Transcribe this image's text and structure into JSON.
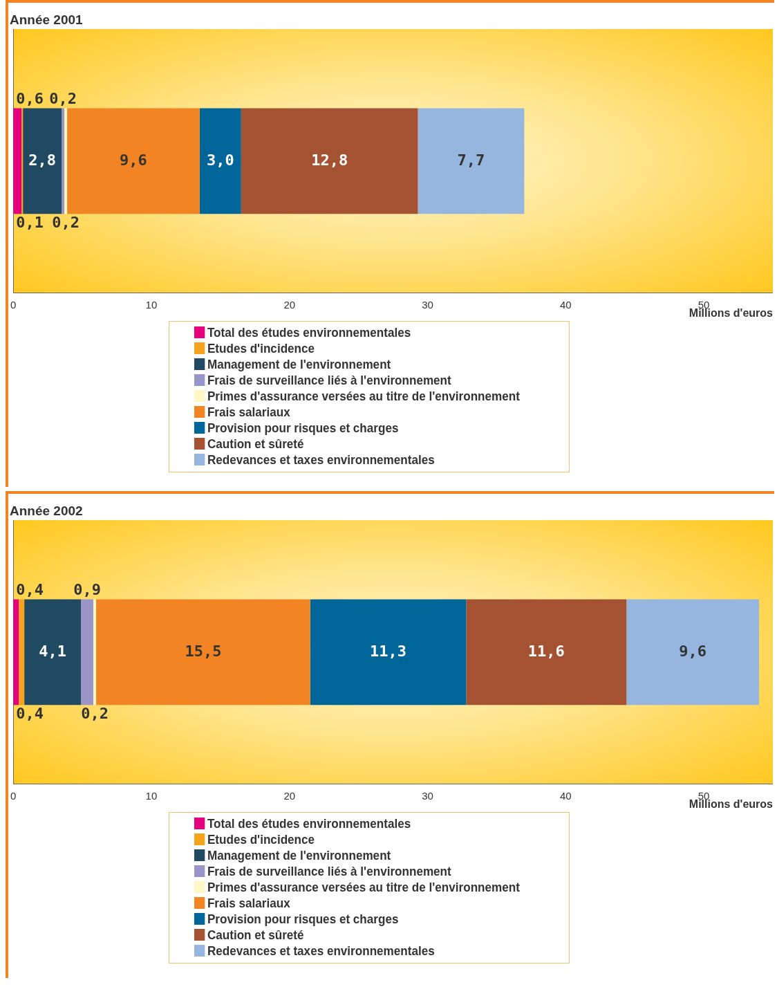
{
  "chart_data": [
    {
      "type": "bar",
      "title": "Année 2001",
      "orientation": "horizontal",
      "stacked": true,
      "categories": [
        null
      ],
      "xlabel": "Millions d'euros",
      "xlim": [
        0,
        55
      ],
      "xticks": [
        0,
        10,
        20,
        30,
        40,
        50
      ],
      "grid": false,
      "legend": "bottom",
      "series": [
        {
          "name": "Total des études environnementales",
          "color": "#e5007e",
          "values": [
            0.6
          ],
          "value_labels": [
            "0,6"
          ]
        },
        {
          "name": "Etudes d'incidence",
          "color": "#f5a21c",
          "values": [
            0.1
          ],
          "value_labels": [
            "0,1"
          ]
        },
        {
          "name": "Management de l'environnement",
          "color": "#1f4a62",
          "values": [
            2.8
          ],
          "value_labels": [
            "2,8"
          ]
        },
        {
          "name": "Frais de surveillance liés à l'environnement",
          "color": "#9b94c8",
          "values": [
            0.2
          ],
          "value_labels": [
            "0,2"
          ]
        },
        {
          "name": "Primes d'assurance versées au titre de l'environnement",
          "color": "#fff8c4",
          "values": [
            0.2
          ],
          "value_labels": [
            "0,2"
          ]
        },
        {
          "name": "Frais salariaux",
          "color": "#f28424",
          "values": [
            9.6
          ],
          "value_labels": [
            "9,6"
          ]
        },
        {
          "name": "Provision pour risques et charges",
          "color": "#00669a",
          "values": [
            3.0
          ],
          "value_labels": [
            "3,0"
          ]
        },
        {
          "name": "Caution et sûreté",
          "color": "#a55232",
          "values": [
            12.8
          ],
          "value_labels": [
            "12,8"
          ]
        },
        {
          "name": "Redevances et taxes environnementales",
          "color": "#96b6df",
          "values": [
            7.7
          ],
          "value_labels": [
            "7,7"
          ]
        }
      ]
    },
    {
      "type": "bar",
      "title": "Année 2002",
      "orientation": "horizontal",
      "stacked": true,
      "categories": [
        null
      ],
      "xlabel": "Millions d'euros",
      "xlim": [
        0,
        55
      ],
      "xticks": [
        0,
        10,
        20,
        30,
        40,
        50
      ],
      "grid": false,
      "legend": "bottom",
      "series": [
        {
          "name": "Total des études environnementales",
          "color": "#e5007e",
          "values": [
            0.4
          ],
          "value_labels": [
            "0,4"
          ]
        },
        {
          "name": "Etudes d'incidence",
          "color": "#f5a21c",
          "values": [
            0.4
          ],
          "value_labels": [
            "0,4"
          ]
        },
        {
          "name": "Management de l'environnement",
          "color": "#1f4a62",
          "values": [
            4.1
          ],
          "value_labels": [
            "4,1"
          ]
        },
        {
          "name": "Frais de surveillance liés à l'environnement",
          "color": "#9b94c8",
          "values": [
            0.9
          ],
          "value_labels": [
            "0,9"
          ]
        },
        {
          "name": "Primes d'assurance versées au titre de l'environnement",
          "color": "#fff8c4",
          "values": [
            0.2
          ],
          "value_labels": [
            "0,2"
          ]
        },
        {
          "name": "Frais salariaux",
          "color": "#f28424",
          "values": [
            15.5
          ],
          "value_labels": [
            "15,5"
          ]
        },
        {
          "name": "Provision pour risques et charges",
          "color": "#00669a",
          "values": [
            11.3
          ],
          "value_labels": [
            "11,3"
          ]
        },
        {
          "name": "Caution et sûreté",
          "color": "#a55232",
          "values": [
            11.6
          ],
          "value_labels": [
            "11,6"
          ]
        },
        {
          "name": "Redevances et taxes environnementales",
          "color": "#96b6df",
          "values": [
            9.6
          ],
          "value_labels": [
            "9,6"
          ]
        }
      ]
    }
  ]
}
